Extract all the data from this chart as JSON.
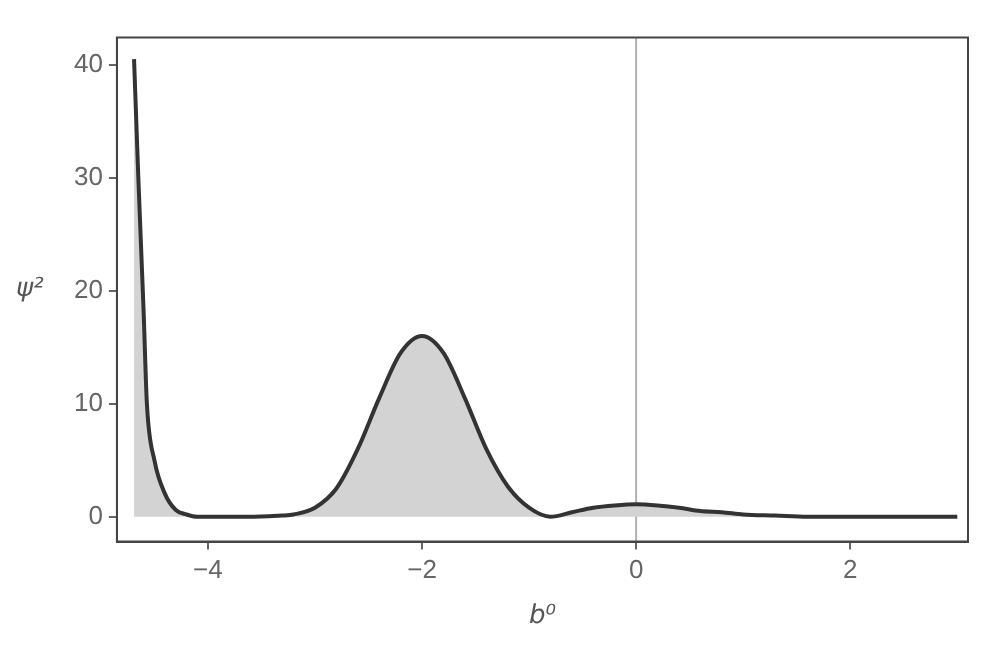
{
  "chart_data": {
    "type": "area",
    "xlabel": "b⁰",
    "ylabel": "ψ²",
    "x": [
      -4.69,
      -4.65,
      -4.6,
      -4.57,
      -4.5,
      -4.4,
      -4.3,
      -4.2,
      -4.1,
      -4,
      -3.6,
      -3.3,
      -3.2,
      -3,
      -2.8,
      -2.6,
      -2.4,
      -2.2,
      -2,
      -1.8,
      -1.6,
      -1.4,
      -1.2,
      -1,
      -0.8,
      -0.6,
      -0.4,
      -0.2,
      0,
      0.2,
      0.4,
      0.6,
      0.8,
      1,
      1.3,
      1.6,
      2,
      2.5,
      3
    ],
    "series": [
      {
        "color": "#333333",
        "values": [
          40.5,
          30,
          18,
          10,
          5,
          2,
          0.6,
          0.2,
          0,
          0,
          0,
          0.1,
          0.2,
          0.8,
          2.5,
          6,
          10.5,
          14.5,
          16,
          14.5,
          10.5,
          6,
          2.7,
          0.8,
          0,
          0.4,
          0.8,
          1,
          1.1,
          1,
          0.8,
          0.5,
          0.4,
          0.2,
          0.1,
          0,
          0,
          0,
          0
        ]
      }
    ],
    "xlim": [
      -4.85,
      3.1
    ],
    "xticks": [
      -4,
      -2,
      0,
      2
    ],
    "ylim": [
      -2.2,
      42.4
    ],
    "yticks": [
      0,
      10,
      20,
      30,
      40
    ],
    "ref_lines": [
      {
        "axis": "x",
        "value": 0,
        "color": "#b0b0b0"
      }
    ]
  }
}
